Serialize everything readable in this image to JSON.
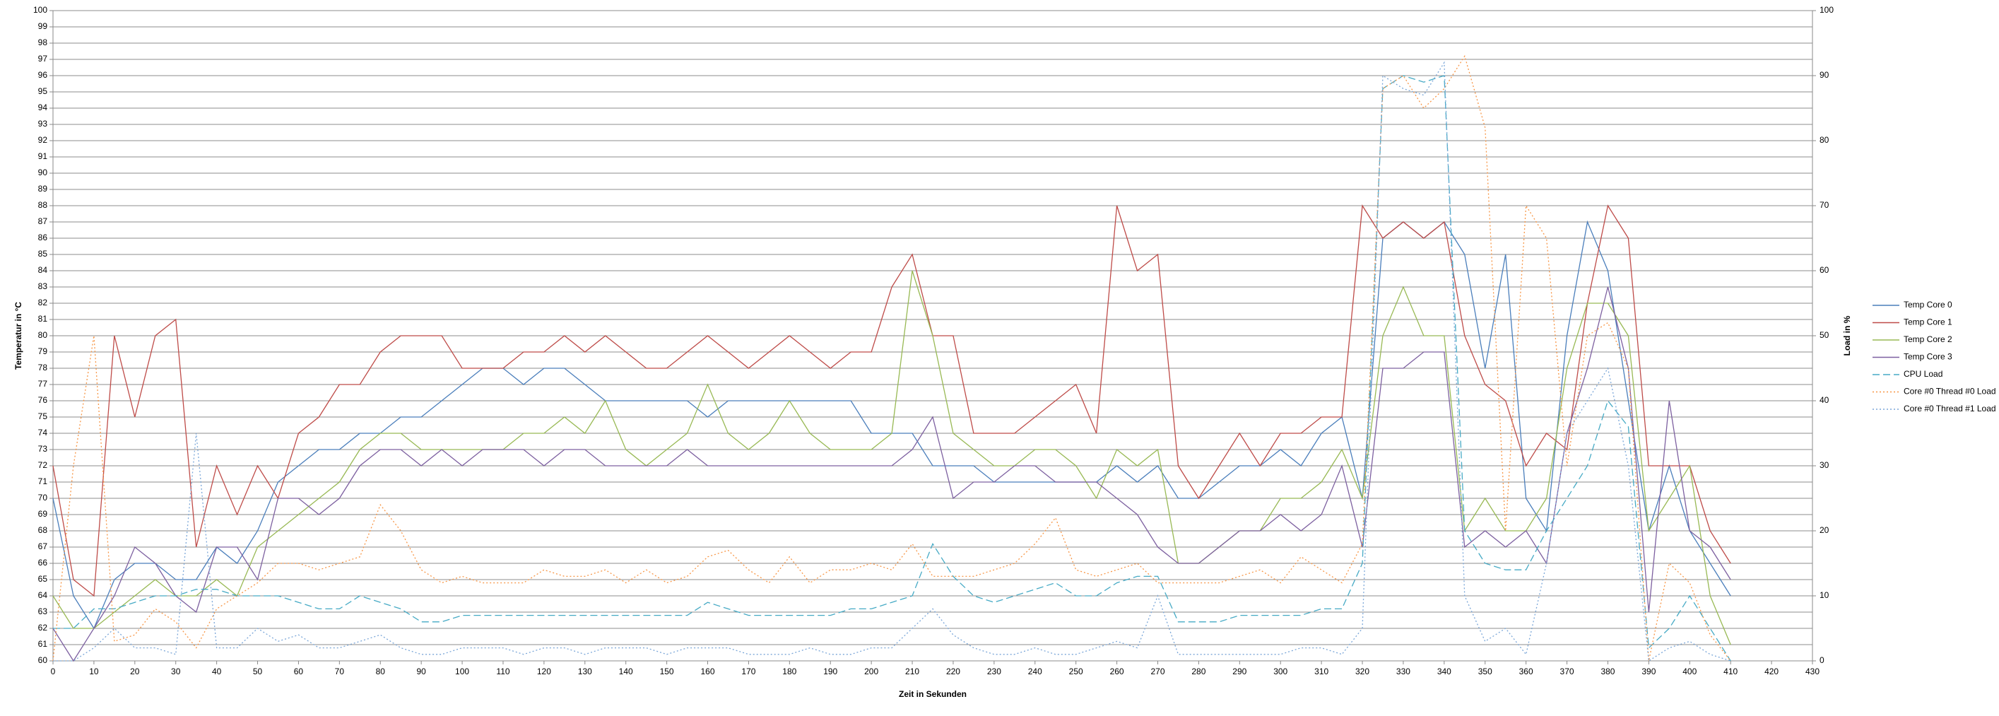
{
  "chart_data": {
    "type": "line",
    "xlabel": "Zeit in Sekunden",
    "ylabel": "Temperatur in °C",
    "y2label": "Load in %",
    "x": [
      0,
      5,
      10,
      15,
      20,
      25,
      30,
      35,
      40,
      45,
      50,
      55,
      60,
      65,
      70,
      75,
      80,
      85,
      90,
      95,
      100,
      105,
      110,
      115,
      120,
      125,
      130,
      135,
      140,
      145,
      150,
      155,
      160,
      165,
      170,
      175,
      180,
      185,
      190,
      195,
      200,
      205,
      210,
      215,
      220,
      225,
      230,
      235,
      240,
      245,
      250,
      255,
      260,
      265,
      270,
      275,
      280,
      285,
      290,
      295,
      300,
      305,
      310,
      315,
      320,
      325,
      330,
      335,
      340,
      345,
      350,
      355,
      360,
      365,
      370,
      375,
      380,
      385,
      390,
      395,
      400,
      405,
      410
    ],
    "xlim": [
      0,
      430
    ],
    "xticks": [
      0,
      10,
      20,
      30,
      40,
      50,
      60,
      70,
      80,
      90,
      100,
      110,
      120,
      130,
      140,
      150,
      160,
      170,
      180,
      190,
      200,
      210,
      220,
      230,
      240,
      250,
      260,
      270,
      280,
      290,
      300,
      310,
      320,
      330,
      340,
      350,
      360,
      370,
      380,
      390,
      400,
      410,
      420,
      430
    ],
    "ylim": [
      60,
      100
    ],
    "yticks": [
      60,
      61,
      62,
      63,
      64,
      65,
      66,
      67,
      68,
      69,
      70,
      71,
      72,
      73,
      74,
      75,
      76,
      77,
      78,
      79,
      80,
      81,
      82,
      83,
      84,
      85,
      86,
      87,
      88,
      89,
      90,
      91,
      92,
      93,
      94,
      95,
      96,
      97,
      98,
      99,
      100
    ],
    "y2lim": [
      0,
      100
    ],
    "y2ticks": [
      0,
      10,
      20,
      30,
      40,
      50,
      60,
      70,
      80,
      90,
      100
    ],
    "grid": true,
    "legend": "right",
    "series": [
      {
        "name": "Temp Core 0",
        "color": "#4a7ebb",
        "dash": "solid",
        "values": [
          70,
          64,
          62,
          65,
          66,
          66,
          65,
          65,
          67,
          66,
          68,
          71,
          72,
          73,
          73,
          74,
          74,
          75,
          75,
          76,
          77,
          78,
          78,
          77,
          78,
          78,
          77,
          76,
          76,
          76,
          76,
          76,
          75,
          76,
          76,
          76,
          76,
          76,
          76,
          76,
          74,
          74,
          74,
          72,
          72,
          72,
          71,
          71,
          71,
          71,
          71,
          71,
          72,
          71,
          72,
          70,
          70,
          71,
          72,
          72,
          73,
          72,
          74,
          75,
          70,
          86,
          87,
          86,
          87,
          85,
          78,
          85,
          70,
          68,
          80,
          87,
          84,
          76,
          68,
          72,
          68,
          66,
          64
        ]
      },
      {
        "name": "Temp Core 1",
        "color": "#be4b48",
        "dash": "solid",
        "values": [
          72,
          65,
          64,
          80,
          75,
          80,
          81,
          67,
          72,
          69,
          72,
          70,
          74,
          75,
          77,
          77,
          79,
          80,
          80,
          80,
          78,
          78,
          78,
          79,
          79,
          80,
          79,
          80,
          79,
          78,
          78,
          79,
          80,
          79,
          78,
          79,
          80,
          79,
          78,
          79,
          79,
          83,
          85,
          80,
          80,
          74,
          74,
          74,
          75,
          76,
          77,
          74,
          88,
          84,
          85,
          72,
          70,
          72,
          74,
          72,
          74,
          74,
          75,
          75,
          88,
          86,
          87,
          86,
          87,
          80,
          77,
          76,
          72,
          74,
          73,
          82,
          88,
          86,
          72,
          72,
          72,
          68,
          66
        ]
      },
      {
        "name": "Temp Core 2",
        "color": "#98b954",
        "dash": "solid",
        "values": [
          64,
          62,
          62,
          63,
          64,
          65,
          64,
          64,
          65,
          64,
          67,
          68,
          69,
          70,
          71,
          73,
          74,
          74,
          73,
          73,
          73,
          73,
          73,
          74,
          74,
          75,
          74,
          76,
          73,
          72,
          73,
          74,
          77,
          74,
          73,
          74,
          76,
          74,
          73,
          73,
          73,
          74,
          84,
          80,
          74,
          73,
          72,
          72,
          73,
          73,
          72,
          70,
          73,
          72,
          73,
          66,
          66,
          67,
          68,
          68,
          70,
          70,
          71,
          73,
          70,
          80,
          83,
          80,
          80,
          68,
          70,
          68,
          68,
          70,
          78,
          82,
          82,
          80,
          68,
          70,
          72,
          64,
          61
        ]
      },
      {
        "name": "Temp Core 3",
        "color": "#7d60a0",
        "dash": "solid",
        "values": [
          62,
          60,
          62,
          64,
          67,
          66,
          64,
          63,
          67,
          67,
          65,
          70,
          70,
          69,
          70,
          72,
          73,
          73,
          72,
          73,
          72,
          73,
          73,
          73,
          72,
          73,
          73,
          72,
          72,
          72,
          72,
          73,
          72,
          72,
          72,
          72,
          72,
          72,
          72,
          72,
          72,
          72,
          73,
          75,
          70,
          71,
          71,
          72,
          72,
          71,
          71,
          71,
          70,
          69,
          67,
          66,
          66,
          67,
          68,
          68,
          69,
          68,
          69,
          72,
          67,
          78,
          78,
          79,
          79,
          67,
          68,
          67,
          68,
          66,
          74,
          78,
          83,
          78,
          63,
          76,
          68,
          67,
          65
        ]
      },
      {
        "name": "CPU Load",
        "color": "#46aac5",
        "dash": "dash",
        "axis": "y2",
        "values": [
          5,
          5,
          8,
          8,
          9,
          10,
          10,
          11,
          11,
          10,
          10,
          10,
          9,
          8,
          8,
          10,
          9,
          8,
          6,
          6,
          7,
          7,
          7,
          7,
          7,
          7,
          7,
          7,
          7,
          7,
          7,
          7,
          9,
          8,
          7,
          7,
          7,
          7,
          7,
          8,
          8,
          9,
          10,
          18,
          13,
          10,
          9,
          10,
          11,
          12,
          10,
          10,
          12,
          13,
          13,
          6,
          6,
          6,
          7,
          7,
          7,
          7,
          8,
          8,
          15,
          88,
          90,
          89,
          90,
          20,
          15,
          14,
          14,
          20,
          25,
          30,
          40,
          36,
          2,
          5,
          10,
          5,
          0
        ]
      },
      {
        "name": "Core #0 Thread #0 Load",
        "color": "#f79646",
        "dash": "dot",
        "axis": "y2",
        "values": [
          0,
          30,
          50,
          3,
          4,
          8,
          6,
          2,
          8,
          10,
          12,
          15,
          15,
          14,
          15,
          16,
          24,
          20,
          14,
          12,
          13,
          12,
          12,
          12,
          14,
          13,
          13,
          14,
          12,
          14,
          12,
          13,
          16,
          17,
          14,
          12,
          16,
          12,
          14,
          14,
          15,
          14,
          18,
          13,
          13,
          13,
          14,
          15,
          18,
          22,
          14,
          13,
          14,
          15,
          12,
          12,
          12,
          12,
          13,
          14,
          12,
          16,
          14,
          12,
          18,
          88,
          90,
          85,
          88,
          93,
          82,
          20,
          70,
          65,
          30,
          50,
          52,
          45,
          0,
          15,
          12,
          4,
          0
        ]
      },
      {
        "name": "Core #0 Thread #1 Load",
        "color": "#7aa6d8",
        "dash": "dot",
        "axis": "y2",
        "values": [
          0,
          0,
          2,
          5,
          2,
          2,
          1,
          35,
          2,
          2,
          5,
          3,
          4,
          2,
          2,
          3,
          4,
          2,
          1,
          1,
          2,
          2,
          2,
          1,
          2,
          2,
          1,
          2,
          2,
          2,
          1,
          2,
          2,
          2,
          1,
          1,
          1,
          2,
          1,
          1,
          2,
          2,
          5,
          8,
          4,
          2,
          1,
          1,
          2,
          1,
          1,
          2,
          3,
          2,
          10,
          1,
          1,
          1,
          1,
          1,
          1,
          2,
          2,
          1,
          5,
          90,
          88,
          87,
          92,
          10,
          3,
          5,
          1,
          15,
          35,
          40,
          45,
          30,
          0,
          2,
          3,
          1,
          0
        ]
      }
    ]
  }
}
